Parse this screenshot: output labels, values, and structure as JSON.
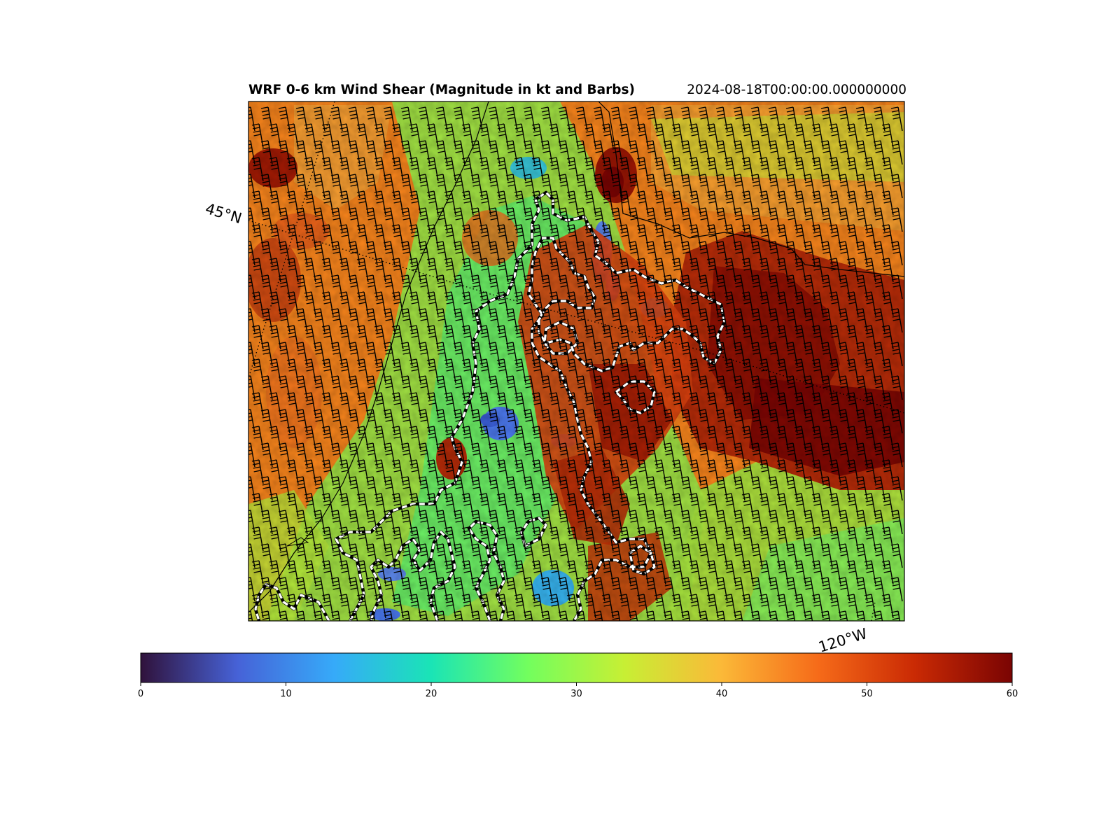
{
  "title": "WRF 0-6 km Wind Shear (Magnitude in kt and Barbs)",
  "valid_time": "2024-08-18T00:00:00.000000000",
  "map": {
    "gridline_labels": [
      "45°N",
      "120°W"
    ],
    "field": "0-6 km wind shear magnitude (kt) with wind barbs",
    "colormap": "turbo",
    "contour_style": "white dashed with black outline"
  },
  "colorbar": {
    "min": 0,
    "max": 60,
    "tick_labels": [
      "0",
      "10",
      "20",
      "30",
      "40",
      "50",
      "60"
    ],
    "colors": [
      "#30123b",
      "#4662d7",
      "#36aaf9",
      "#1ae4b6",
      "#72fe5e",
      "#c7ef34",
      "#fbb938",
      "#f66b19",
      "#ca2a04",
      "#7a0403"
    ]
  }
}
